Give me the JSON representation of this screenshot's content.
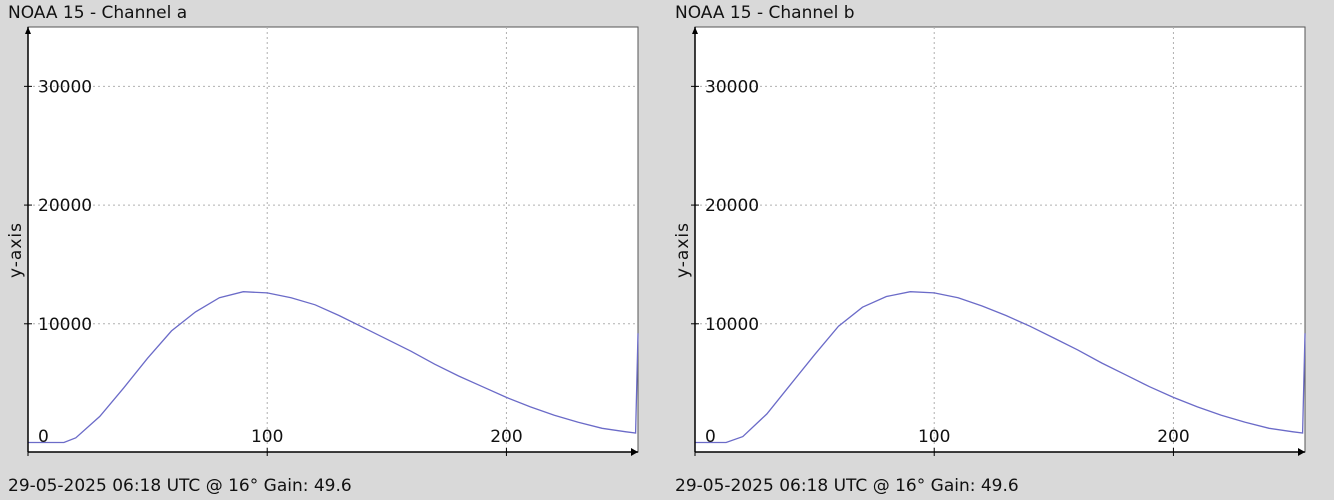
{
  "panels": [
    {
      "title": "NOAA 15 - Channel a",
      "footer": "29-05-2025 06:18 UTC @ 16° Gain: 49.6"
    },
    {
      "title": "NOAA 15 - Channel b",
      "footer": "29-05-2025 06:18 UTC @ 16° Gain: 49.6"
    }
  ],
  "colors": {
    "background": "#d9d9d9",
    "plot_area": "#ffffff",
    "line": "#6b6bc8",
    "grid": "#b0b0b0",
    "axis": "#000000"
  },
  "chart_data": [
    {
      "type": "line",
      "title": "NOAA 15 - Channel a",
      "xlabel": "",
      "ylabel": "y-axis",
      "xlim": [
        0,
        255
      ],
      "ylim": [
        -800,
        35000
      ],
      "x_ticks": [
        0,
        100,
        200
      ],
      "y_ticks": [
        10000,
        20000,
        30000
      ],
      "grid": true,
      "series": [
        {
          "x": [
            0,
            15,
            20,
            30,
            40,
            50,
            60,
            70,
            80,
            90,
            100,
            110,
            120,
            130,
            140,
            150,
            160,
            170,
            180,
            190,
            200,
            210,
            220,
            230,
            240,
            250,
            254,
            255
          ],
          "y": [
            0,
            0,
            400,
            2200,
            4600,
            7100,
            9400,
            11000,
            12200,
            12700,
            12600,
            12200,
            11600,
            10700,
            9700,
            8700,
            7700,
            6600,
            5600,
            4700,
            3800,
            3000,
            2300,
            1700,
            1200,
            900,
            800,
            9200
          ]
        }
      ]
    },
    {
      "type": "line",
      "title": "NOAA 15 - Channel b",
      "xlabel": "",
      "ylabel": "y-axis",
      "xlim": [
        0,
        255
      ],
      "ylim": [
        -800,
        35000
      ],
      "x_ticks": [
        0,
        100,
        200
      ],
      "y_ticks": [
        10000,
        20000,
        30000
      ],
      "grid": true,
      "series": [
        {
          "x": [
            0,
            13,
            20,
            30,
            40,
            50,
            60,
            70,
            80,
            90,
            100,
            110,
            120,
            130,
            140,
            150,
            160,
            170,
            180,
            190,
            200,
            210,
            220,
            230,
            240,
            250,
            254,
            255
          ],
          "y": [
            0,
            0,
            500,
            2400,
            4900,
            7400,
            9800,
            11400,
            12300,
            12700,
            12600,
            12200,
            11500,
            10700,
            9800,
            8800,
            7800,
            6700,
            5700,
            4700,
            3800,
            3000,
            2300,
            1700,
            1200,
            900,
            800,
            9200
          ]
        }
      ]
    }
  ]
}
